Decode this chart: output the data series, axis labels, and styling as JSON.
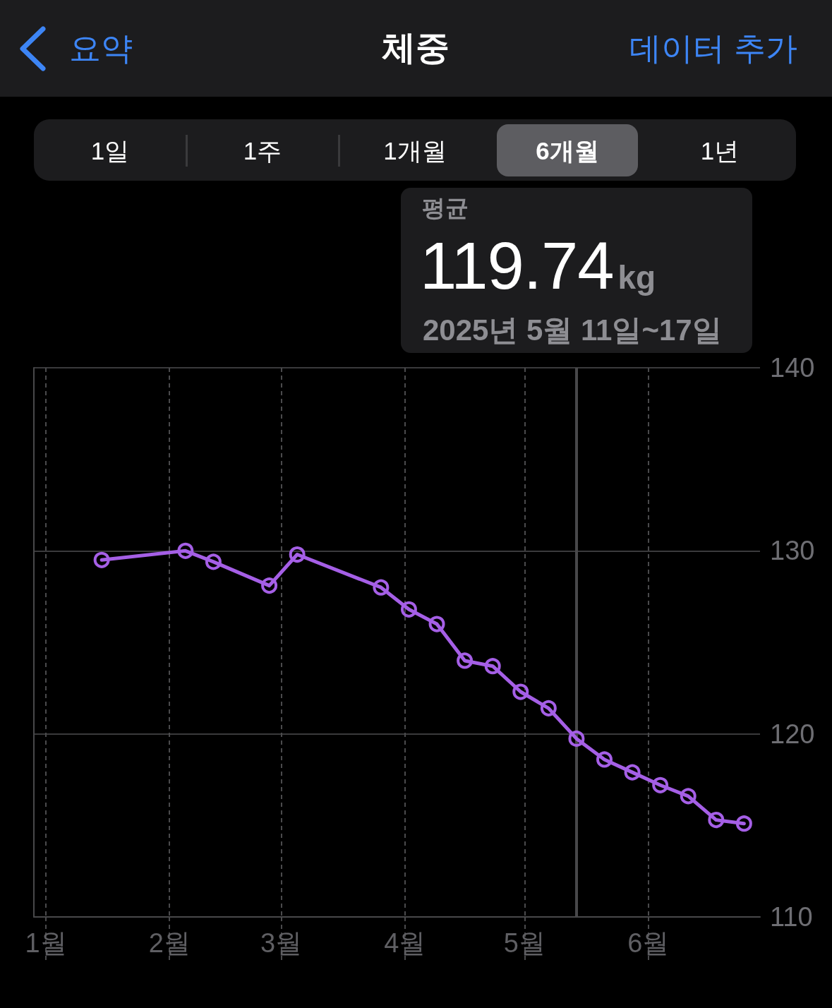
{
  "chart_data": {
    "type": "line",
    "title": "체중",
    "x": [
      "2025-01-15",
      "2025-02-05",
      "2025-02-12",
      "2025-02-26",
      "2025-03-05",
      "2025-03-26",
      "2025-04-02",
      "2025-04-09",
      "2025-04-16",
      "2025-04-23",
      "2025-04-30",
      "2025-05-07",
      "2025-05-14",
      "2025-05-21",
      "2025-05-28",
      "2025-06-04",
      "2025-06-11",
      "2025-06-18",
      "2025-06-25"
    ],
    "values": [
      129.5,
      130.0,
      129.4,
      128.1,
      129.8,
      128.0,
      126.8,
      126.0,
      124.0,
      123.7,
      122.3,
      121.4,
      119.74,
      118.6,
      117.9,
      117.2,
      116.6,
      115.3,
      115.1
    ],
    "color": "#a55fe6",
    "marker": "circle",
    "line_style": "solid",
    "xlim": [
      "2024-12-29",
      "2025-06-29"
    ],
    "xticks": [
      {
        "value": "2025-01-01",
        "label": "1월"
      },
      {
        "value": "2025-02-01",
        "label": "2월"
      },
      {
        "value": "2025-03-01",
        "label": "3월"
      },
      {
        "value": "2025-04-01",
        "label": "4월"
      },
      {
        "value": "2025-05-01",
        "label": "5월"
      },
      {
        "value": "2025-06-01",
        "label": "6월"
      }
    ],
    "ylim": [
      110,
      140
    ],
    "yticks": [
      110,
      120,
      130,
      140
    ],
    "grid": true,
    "ref_lines": [
      {
        "axis": "x",
        "value": "2025-05-14",
        "color": "#48484a"
      }
    ],
    "annotations": [
      "요약",
      "데이터 추가",
      "1일",
      "1주",
      "1개월",
      "6개월",
      "1년",
      "평균",
      "119.74",
      "kg",
      "2025년 5월 11일~17일"
    ]
  }
}
